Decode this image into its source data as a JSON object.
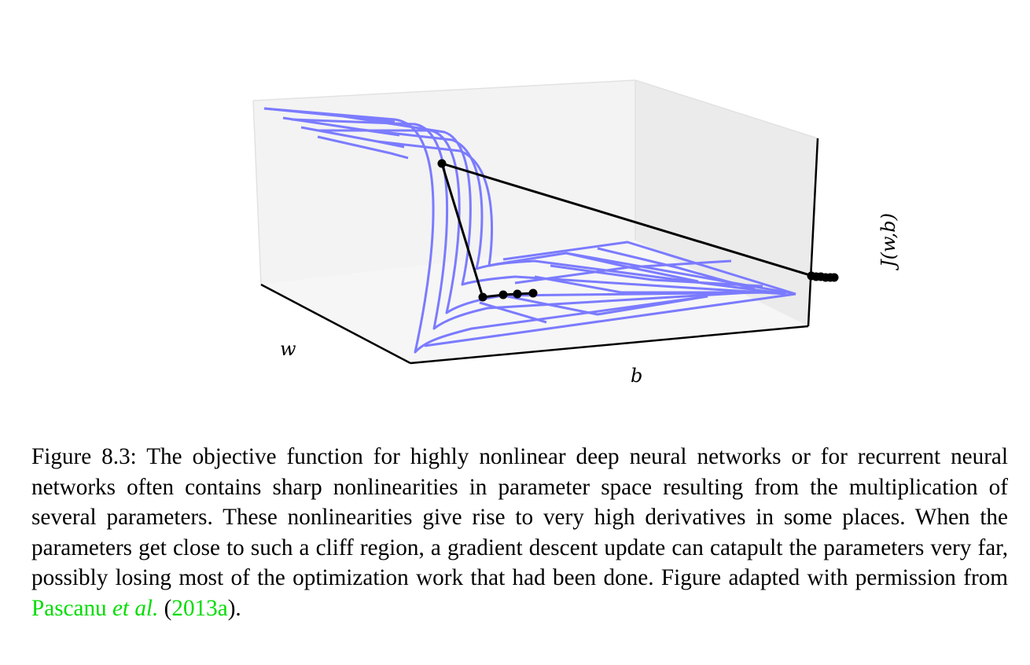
{
  "figure": {
    "axis_labels": {
      "w": "w",
      "b": "b",
      "z": "J(w,b)"
    },
    "colors": {
      "surface": "#7b7bff",
      "pane": "#f1f1f1",
      "axis": "#000000",
      "path": "#000000"
    }
  },
  "caption": {
    "text": "Figure 8.3: The objective function for highly nonlinear deep neural networks or for recurrent neural networks often contains sharp nonlinearities in parameter space resulting from the multiplication of several parameters.  These nonlinearities give rise to very high derivatives in some places. When the parameters get close to such a cliff region, a gradient descent update can catapult the parameters very far, possibly losing most of the optimization work that had been done. Figure adapted with permission from ",
    "cite_author": "Pascanu",
    "cite_etal": "et al.",
    "cite_open": " (",
    "cite_year": "2013a",
    "cite_close": ")."
  }
}
